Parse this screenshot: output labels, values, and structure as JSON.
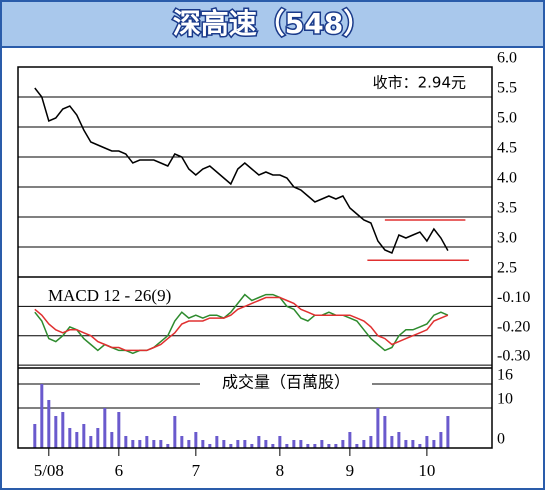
{
  "chart_data": [
    {
      "type": "line",
      "title": "深高速（548）",
      "annotation": "收市：2.94元",
      "series": [
        {
          "color": "#000000",
          "values": [
            5.65,
            5.5,
            5.1,
            5.15,
            5.3,
            5.35,
            5.2,
            4.95,
            4.75,
            4.7,
            4.65,
            4.6,
            4.6,
            4.55,
            4.4,
            4.45,
            4.45,
            4.45,
            4.4,
            4.35,
            4.55,
            4.5,
            4.3,
            4.2,
            4.3,
            4.35,
            4.25,
            4.15,
            4.05,
            4.3,
            4.4,
            4.3,
            4.2,
            4.25,
            4.2,
            4.2,
            4.15,
            4.0,
            3.95,
            3.85,
            3.75,
            3.8,
            3.85,
            3.8,
            3.85,
            3.65,
            3.55,
            3.45,
            3.4,
            3.1,
            2.95,
            2.9,
            3.2,
            3.15,
            3.2,
            3.25,
            3.1,
            3.3,
            3.15,
            2.94
          ]
        }
      ],
      "reference_lines": [
        {
          "value": 3.45,
          "color": "#e03030"
        },
        {
          "value": 2.78,
          "color": "#e03030"
        }
      ],
      "xlim": [
        -2.4,
        65.3
      ],
      "ylim": [
        2.5,
        6.0
      ],
      "yticks": [
        {
          "value": 6.0,
          "label": "6.0"
        },
        5.5,
        {
          "value": 5.0,
          "label": "5.0"
        },
        4.5,
        {
          "value": 4.0,
          "label": "4.0"
        },
        3.5,
        {
          "value": 3.0,
          "label": "3.0"
        },
        2.5
      ],
      "grid": true
    },
    {
      "type": "line",
      "title": "MACD 12 - 26(9)",
      "series": [
        {
          "color": "#2e8b2e",
          "values": [
            -0.12,
            -0.15,
            -0.21,
            -0.22,
            -0.2,
            -0.17,
            -0.18,
            -0.21,
            -0.23,
            -0.25,
            -0.23,
            -0.24,
            -0.25,
            -0.25,
            -0.26,
            -0.25,
            -0.25,
            -0.24,
            -0.22,
            -0.2,
            -0.15,
            -0.12,
            -0.14,
            -0.13,
            -0.14,
            -0.13,
            -0.13,
            -0.14,
            -0.12,
            -0.09,
            -0.06,
            -0.08,
            -0.07,
            -0.06,
            -0.06,
            -0.07,
            -0.1,
            -0.11,
            -0.14,
            -0.15,
            -0.13,
            -0.13,
            -0.12,
            -0.13,
            -0.13,
            -0.14,
            -0.15,
            -0.18,
            -0.21,
            -0.23,
            -0.25,
            -0.24,
            -0.2,
            -0.18,
            -0.18,
            -0.17,
            -0.16,
            -0.13,
            -0.12,
            -0.13
          ]
        },
        {
          "color": "#e03030",
          "values": [
            -0.11,
            -0.13,
            -0.16,
            -0.18,
            -0.19,
            -0.18,
            -0.18,
            -0.19,
            -0.2,
            -0.22,
            -0.23,
            -0.24,
            -0.24,
            -0.25,
            -0.25,
            -0.25,
            -0.25,
            -0.24,
            -0.23,
            -0.21,
            -0.19,
            -0.16,
            -0.15,
            -0.15,
            -0.15,
            -0.14,
            -0.14,
            -0.14,
            -0.13,
            -0.11,
            -0.1,
            -0.09,
            -0.08,
            -0.07,
            -0.07,
            -0.07,
            -0.08,
            -0.09,
            -0.11,
            -0.12,
            -0.13,
            -0.13,
            -0.13,
            -0.13,
            -0.13,
            -0.13,
            -0.14,
            -0.15,
            -0.17,
            -0.2,
            -0.21,
            -0.23,
            -0.22,
            -0.21,
            -0.2,
            -0.19,
            -0.18,
            -0.15,
            -0.14,
            -0.13
          ]
        }
      ],
      "xlim": [
        -2.4,
        65.3
      ],
      "ylim": [
        -0.31,
        0.0
      ],
      "yticks": [
        {
          "value": -0.1,
          "label": "-0.10"
        },
        {
          "value": -0.2,
          "label": "-0.20"
        },
        {
          "value": -0.3,
          "label": "-0.30"
        }
      ],
      "grid": true
    },
    {
      "type": "bar",
      "title": "成交量（百萬股）",
      "color": "#6a5acd",
      "values": [
        6,
        16,
        12,
        8,
        9,
        5,
        4,
        6,
        3,
        5,
        10,
        4,
        9,
        3,
        2,
        2,
        3,
        2,
        2,
        1,
        8,
        3,
        2,
        4,
        2,
        1,
        3,
        2,
        1,
        2,
        2,
        1,
        3,
        2,
        1,
        3,
        1,
        2,
        2,
        1,
        1,
        2,
        1,
        1,
        2,
        4,
        1,
        2,
        3,
        10,
        8,
        3,
        4,
        2,
        2,
        1,
        3,
        2,
        4,
        8
      ],
      "xlim": [
        -2.4,
        65.3
      ],
      "ylim": [
        0,
        20
      ],
      "yticks": [
        16,
        10,
        0
      ],
      "xticks": [
        {
          "value": 2,
          "label": "5/08"
        },
        {
          "value": 12,
          "label": "6"
        },
        {
          "value": 23,
          "label": "7"
        },
        {
          "value": 35,
          "label": "8"
        },
        {
          "value": 45,
          "label": "9"
        },
        {
          "value": 56,
          "label": "10"
        }
      ],
      "grid": true
    }
  ]
}
